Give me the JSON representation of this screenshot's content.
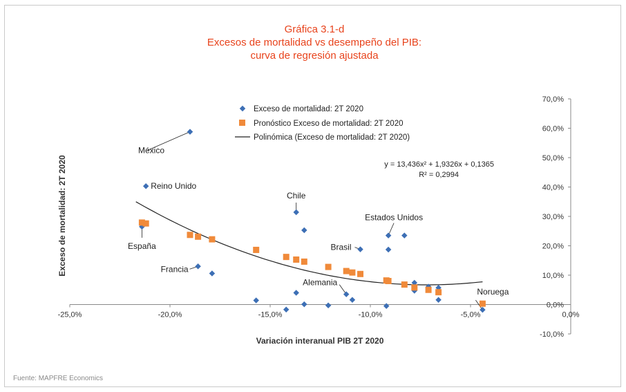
{
  "chart_data": {
    "type": "scatter",
    "title_lines": [
      "Gráfica 3.1-d",
      "Excesos de mortalidad vs desempeño del PIB:",
      "curva de regresión ajustada"
    ],
    "xlabel": "Variación interanual PIB 2T 2020",
    "ylabel": "Exceso de mortalidad: 2T 2020",
    "xlim": [
      -0.25,
      0.0
    ],
    "ylim": [
      -0.1,
      0.7
    ],
    "x_ticks": [
      -0.25,
      -0.2,
      -0.15,
      -0.1,
      -0.05,
      0.0
    ],
    "x_tick_labels": [
      "-25,0%",
      "-20,0%",
      "-15,0%",
      "-10,0%",
      "-5,0%",
      "0,0%"
    ],
    "y_ticks": [
      -0.1,
      0.0,
      0.1,
      0.2,
      0.3,
      0.4,
      0.5,
      0.6,
      0.7
    ],
    "y_tick_labels": [
      "-10,0%",
      "0,0%",
      "10,0%",
      "20,0%",
      "30,0%",
      "40,0%",
      "50,0%",
      "60,0%",
      "70,0%"
    ],
    "legend": [
      {
        "label": "Exceso de mortalidad: 2T 2020",
        "marker": "diamond",
        "color": "#3d6fb5"
      },
      {
        "label": "Pronóstico Exceso de mortalidad: 2T 2020",
        "marker": "square",
        "color": "#f08a3a"
      },
      {
        "label": "Polinómica (Exceso de mortalidad: 2T 2020)",
        "marker": "line",
        "color": "#222222"
      }
    ],
    "legend_position": "top-center",
    "equation": "y = 13,436x² + 1,9326x + 0,1365",
    "r_squared": "R² = 0,2994",
    "fit": {
      "a": 13.436,
      "b": 1.9326,
      "c": 0.1365,
      "x_range": [
        -0.217,
        -0.044
      ]
    },
    "series": [
      {
        "name": "Exceso de mortalidad: 2T 2020",
        "marker": "diamond",
        "color": "#3d6fb5",
        "points": [
          {
            "x": -0.19,
            "y": 0.588
          },
          {
            "x": -0.212,
            "y": 0.403
          },
          {
            "x": -0.214,
            "y": 0.265
          },
          {
            "x": -0.186,
            "y": 0.13
          },
          {
            "x": -0.179,
            "y": 0.106
          },
          {
            "x": -0.157,
            "y": 0.014
          },
          {
            "x": -0.142,
            "y": -0.017
          },
          {
            "x": -0.137,
            "y": 0.04
          },
          {
            "x": -0.133,
            "y": 0.001
          },
          {
            "x": -0.137,
            "y": 0.314
          },
          {
            "x": -0.133,
            "y": 0.253
          },
          {
            "x": -0.121,
            "y": -0.003
          },
          {
            "x": -0.112,
            "y": 0.035
          },
          {
            "x": -0.109,
            "y": 0.016
          },
          {
            "x": -0.105,
            "y": 0.188
          },
          {
            "x": -0.091,
            "y": 0.235
          },
          {
            "x": -0.091,
            "y": 0.187
          },
          {
            "x": -0.092,
            "y": -0.005
          },
          {
            "x": -0.083,
            "y": 0.235
          },
          {
            "x": -0.078,
            "y": 0.074
          },
          {
            "x": -0.078,
            "y": 0.047
          },
          {
            "x": -0.071,
            "y": 0.061
          },
          {
            "x": -0.066,
            "y": 0.057
          },
          {
            "x": -0.066,
            "y": 0.016
          },
          {
            "x": -0.044,
            "y": -0.018
          }
        ]
      },
      {
        "name": "Pronóstico Exceso de mortalidad: 2T 2020",
        "marker": "square",
        "color": "#f08a3a",
        "points": [
          {
            "x": -0.214,
            "y": 0.279
          },
          {
            "x": -0.212,
            "y": 0.276
          },
          {
            "x": -0.19,
            "y": 0.237
          },
          {
            "x": -0.186,
            "y": 0.231
          },
          {
            "x": -0.179,
            "y": 0.222
          },
          {
            "x": -0.157,
            "y": 0.186
          },
          {
            "x": -0.142,
            "y": 0.162
          },
          {
            "x": -0.137,
            "y": 0.153
          },
          {
            "x": -0.133,
            "y": 0.146
          },
          {
            "x": -0.121,
            "y": 0.128
          },
          {
            "x": -0.112,
            "y": 0.114
          },
          {
            "x": -0.109,
            "y": 0.109
          },
          {
            "x": -0.105,
            "y": 0.104
          },
          {
            "x": -0.092,
            "y": 0.082
          },
          {
            "x": -0.091,
            "y": 0.08
          },
          {
            "x": -0.083,
            "y": 0.068
          },
          {
            "x": -0.078,
            "y": 0.058
          },
          {
            "x": -0.071,
            "y": 0.05
          },
          {
            "x": -0.066,
            "y": 0.042
          },
          {
            "x": -0.044,
            "y": 0.003
          }
        ]
      }
    ],
    "annotations": [
      {
        "text": "México",
        "x": -0.19,
        "y": 0.588
      },
      {
        "text": "Reino Unido",
        "x": -0.212,
        "y": 0.403
      },
      {
        "text": "España",
        "x": -0.214,
        "y": 0.265
      },
      {
        "text": "Francia",
        "x": -0.186,
        "y": 0.13
      },
      {
        "text": "Chile",
        "x": -0.137,
        "y": 0.314
      },
      {
        "text": "Brasil",
        "x": -0.105,
        "y": 0.188
      },
      {
        "text": "Estados Unidos",
        "x": -0.091,
        "y": 0.235
      },
      {
        "text": "Alemania",
        "x": -0.112,
        "y": 0.035
      },
      {
        "text": "Noruega",
        "x": -0.044,
        "y": -0.018
      }
    ]
  },
  "source": "Fuente: MAPFRE Economics",
  "colors": {
    "title": "#e8431c",
    "diamond": "#3d6fb5",
    "square": "#f08a3a",
    "fit_line": "#222222",
    "axis": "#888888"
  }
}
